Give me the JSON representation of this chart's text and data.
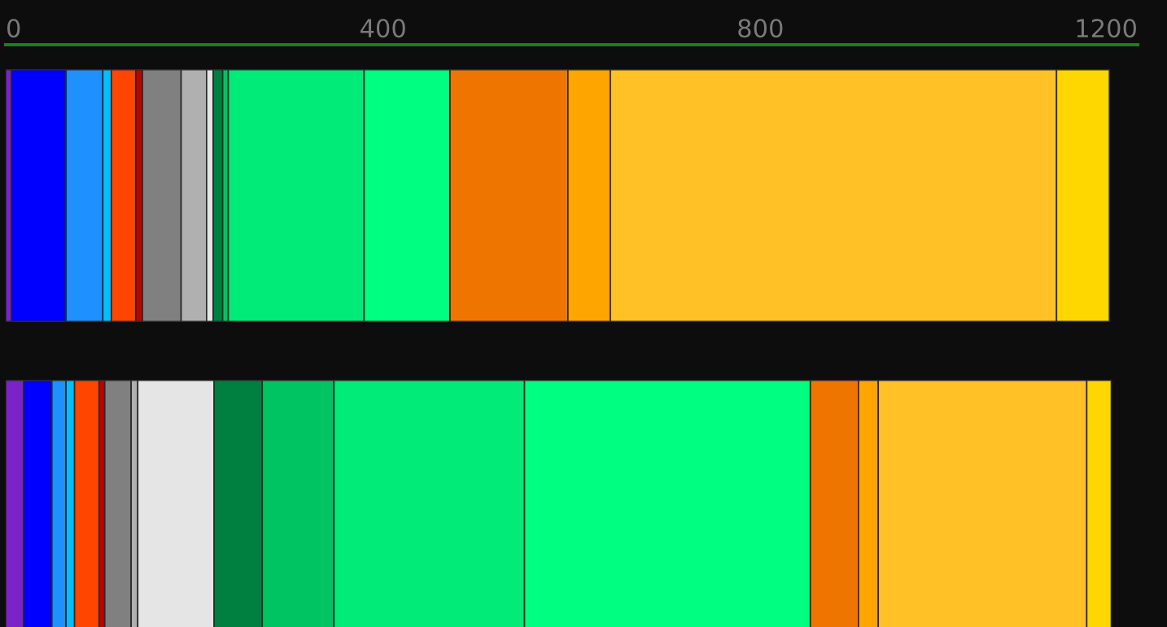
{
  "chart_data": {
    "type": "bar",
    "orientation": "horizontal",
    "stacked": true,
    "categories": [
      null,
      null
    ],
    "xlim": [
      0,
      1200
    ],
    "xticks": [
      0,
      400,
      800,
      1200
    ],
    "grid": false,
    "legend": false,
    "tick_labels": "x",
    "series": [
      {
        "color": "#7b22c8",
        "values": [
          6,
          19
        ]
      },
      {
        "color": "#0000ff",
        "values": [
          58,
          30
        ]
      },
      {
        "color": "#1e90ff",
        "values": [
          39,
          15
        ]
      },
      {
        "color": "#00bfff",
        "values": [
          9,
          9
        ]
      },
      {
        "color": "#ff4500",
        "values": [
          26,
          26
        ]
      },
      {
        "color": "#c00000",
        "values": [
          7,
          6
        ]
      },
      {
        "color": "#808080",
        "values": [
          41,
          28
        ]
      },
      {
        "color": "#b0b0b0",
        "values": [
          27,
          7
        ]
      },
      {
        "color": "#e5e5e5",
        "values": [
          7,
          81
        ]
      },
      {
        "color": "#008040",
        "values": [
          10,
          51
        ]
      },
      {
        "color": "#00c462",
        "values": [
          6,
          76
        ]
      },
      {
        "color": "#00eb78",
        "values": [
          144,
          202
        ]
      },
      {
        "color": "#00ff80",
        "values": [
          91,
          303
        ]
      },
      {
        "color": "#ee7600",
        "values": [
          125,
          51
        ]
      },
      {
        "color": "#ffa500",
        "values": [
          45,
          21
        ]
      },
      {
        "color": "#ffc125",
        "values": [
          473,
          221
        ]
      },
      {
        "color": "#ffd700",
        "values": [
          56,
          26
        ]
      }
    ]
  }
}
